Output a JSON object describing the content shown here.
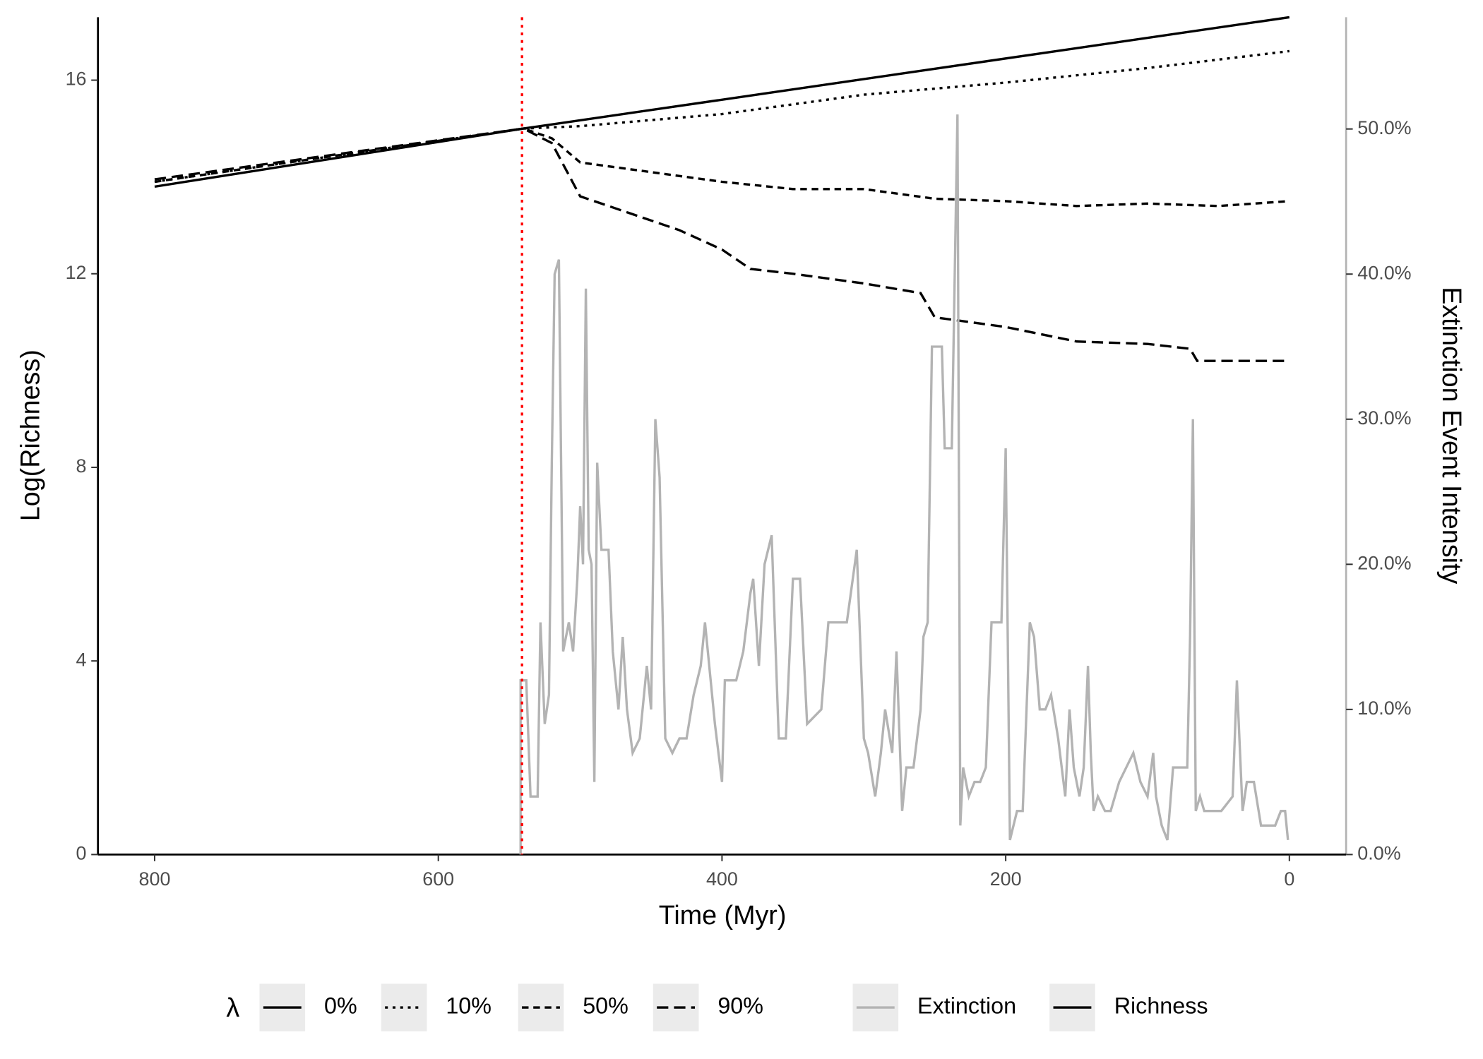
{
  "chart_data": {
    "type": "line",
    "x_label": "Time (Myr)",
    "y_label": "Log(Richness)",
    "y2_label": "Extinction Event Intensity",
    "xlim": [
      840,
      -40
    ],
    "xticks": [
      800,
      600,
      400,
      200,
      0
    ],
    "ylim": [
      0,
      17.3
    ],
    "yticks": [
      0,
      4,
      8,
      12,
      16
    ],
    "y2lim": [
      0,
      57.7
    ],
    "y2ticks": [
      {
        "value": 0,
        "label": "0.0%"
      },
      {
        "value": 10,
        "label": "10.0%"
      },
      {
        "value": 20,
        "label": "20.0%"
      },
      {
        "value": 30,
        "label": "30.0%"
      },
      {
        "value": 40,
        "label": "40.0%"
      },
      {
        "value": 50,
        "label": "50.0%"
      }
    ],
    "linetype_legend_title": "λ",
    "series": [
      {
        "name": "0%",
        "color": "#000000",
        "dash": "solid",
        "x": [
          800,
          540,
          0
        ],
        "values": [
          13.8,
          15.0,
          17.3
        ]
      },
      {
        "name": "10%",
        "color": "#000000",
        "dash": "dotted",
        "x": [
          800,
          540,
          500,
          400,
          300,
          200,
          100,
          0
        ],
        "values": [
          13.9,
          15.0,
          15.05,
          15.3,
          15.7,
          15.95,
          16.25,
          16.6
        ]
      },
      {
        "name": "50%",
        "color": "#000000",
        "dash": "dashed",
        "x": [
          800,
          540,
          520,
          500,
          450,
          400,
          350,
          300,
          250,
          200,
          150,
          100,
          50,
          0
        ],
        "values": [
          13.9,
          15.0,
          14.8,
          14.3,
          14.1,
          13.9,
          13.75,
          13.75,
          13.55,
          13.5,
          13.4,
          13.45,
          13.4,
          13.5
        ]
      },
      {
        "name": "90%",
        "color": "#000000",
        "dash": "longdash",
        "x": [
          800,
          540,
          520,
          500,
          470,
          430,
          400,
          380,
          350,
          300,
          260,
          250,
          200,
          150,
          100,
          70,
          65,
          0
        ],
        "values": [
          13.95,
          15.0,
          14.7,
          13.6,
          13.3,
          12.9,
          12.5,
          12.1,
          12.0,
          11.8,
          11.6,
          11.1,
          10.9,
          10.6,
          10.55,
          10.45,
          10.2,
          10.2
        ]
      },
      {
        "color": "#b3b3b3",
        "dash": "solid",
        "axis": "y2",
        "x": [
          542,
          542,
          538,
          535,
          530,
          528,
          525,
          522,
          520,
          518,
          515,
          512,
          508,
          505,
          502,
          500,
          498,
          496,
          494,
          492,
          490,
          488,
          485,
          480,
          477,
          473,
          470,
          467,
          463,
          458,
          453,
          450,
          447,
          444,
          440,
          435,
          430,
          425,
          420,
          415,
          412,
          407,
          405,
          400,
          398,
          390,
          385,
          380,
          378,
          374,
          370,
          365,
          360,
          355,
          350,
          345,
          340,
          330,
          325,
          318,
          312,
          305,
          300,
          297,
          292,
          288,
          285,
          280,
          277,
          273,
          270,
          265,
          260,
          258,
          255,
          252,
          245,
          243,
          238,
          234,
          232,
          230,
          226,
          222,
          218,
          214,
          210,
          203,
          200,
          197,
          192,
          188,
          183,
          180,
          176,
          172,
          168,
          163,
          158,
          155,
          152,
          148,
          145,
          142,
          140,
          138,
          135,
          130,
          126,
          120,
          115,
          110,
          105,
          100,
          96,
          94,
          90,
          86,
          82,
          78,
          72,
          70,
          68,
          66,
          63,
          60,
          55,
          48,
          40,
          37,
          33,
          30,
          25,
          20,
          15,
          10,
          6,
          3,
          1
        ],
        "values": [
          0,
          12,
          12,
          4,
          4,
          16,
          9,
          11,
          27,
          40,
          41,
          14,
          16,
          14,
          19,
          24,
          20,
          39,
          21,
          20,
          5,
          27,
          21,
          21,
          14,
          10,
          15,
          10,
          7,
          8,
          13,
          10,
          30,
          26,
          8,
          7,
          8,
          8,
          11,
          13,
          16,
          11,
          9,
          5,
          12,
          12,
          14,
          18,
          19,
          13,
          20,
          22,
          8,
          8,
          19,
          19,
          9,
          10,
          16,
          16,
          16,
          21,
          8,
          7,
          4,
          7,
          10,
          7,
          14,
          3,
          6,
          6,
          10,
          15,
          16,
          35,
          35,
          28,
          28,
          51,
          2,
          6,
          4,
          5,
          5,
          6,
          16,
          16,
          28,
          1,
          3,
          3,
          16,
          15,
          10,
          10,
          11,
          8,
          4,
          10,
          6,
          4,
          6,
          13,
          7,
          3,
          4,
          3,
          3,
          5,
          6,
          7,
          5,
          4,
          7,
          4,
          2,
          1,
          6,
          6,
          6,
          15,
          30,
          3,
          4,
          3,
          3,
          3,
          4,
          12,
          3,
          5,
          5,
          2,
          2,
          2,
          3,
          3,
          1
        ]
      }
    ],
    "color_legend": [
      {
        "label": "Extinction",
        "color": "#b3b3b3"
      },
      {
        "label": "Richness",
        "color": "#000000"
      }
    ],
    "vline": {
      "x": 541,
      "color": "#ff0000",
      "style": "dotted"
    }
  }
}
